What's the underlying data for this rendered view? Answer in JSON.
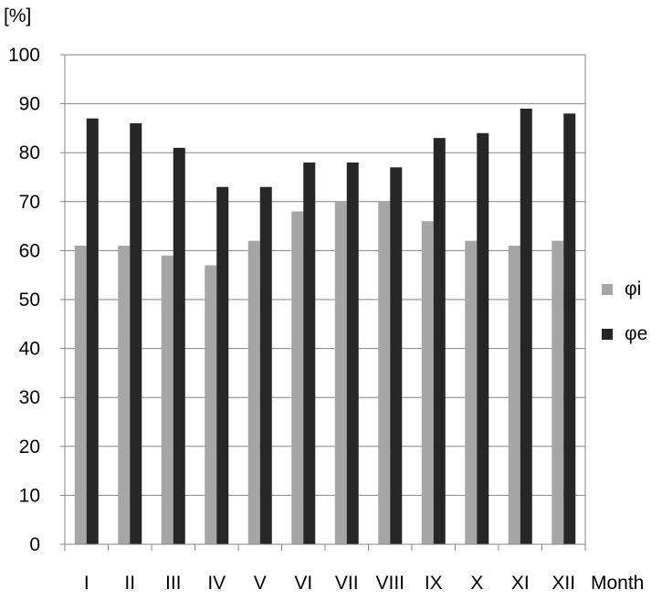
{
  "chart_data": {
    "type": "bar",
    "title": "",
    "ylabel": "[%]",
    "xlabel": "Month",
    "ylim": [
      0,
      100
    ],
    "yticks": [
      0,
      10,
      20,
      30,
      40,
      50,
      60,
      70,
      80,
      90,
      100
    ],
    "grid": "horizontal",
    "legend_position": "right",
    "categories": [
      "I",
      "II",
      "III",
      "IV",
      "V",
      "VI",
      "VII",
      "VIII",
      "IX",
      "X",
      "XI",
      "XII"
    ],
    "series": [
      {
        "name": "φi",
        "color": "#a6a6a6",
        "values": [
          61,
          61,
          59,
          57,
          62,
          68,
          70,
          70,
          66,
          62,
          61,
          62
        ]
      },
      {
        "name": "φe",
        "color": "#262626",
        "values": [
          87,
          86,
          81,
          73,
          73,
          78,
          78,
          77,
          83,
          84,
          89,
          88
        ]
      }
    ]
  }
}
